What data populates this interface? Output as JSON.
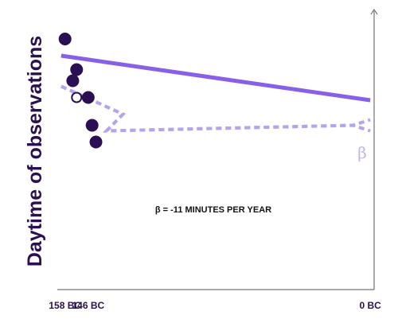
{
  "chart_data": {
    "type": "scatter",
    "title": "",
    "xlabel": "",
    "ylabel": "Daytime of observations",
    "x_tick_labels": [
      "158 BC",
      "146 BC",
      "0 BC"
    ],
    "x_tick_values": [
      -158,
      -146,
      0
    ],
    "xlim": [
      -162,
      2
    ],
    "ylim": [
      0,
      100
    ],
    "grid": false,
    "points": [
      {
        "x": -158,
        "y": 90,
        "style": "filled"
      },
      {
        "x": -154,
        "y": 75,
        "style": "filled"
      },
      {
        "x": -152,
        "y": 79,
        "style": "filled"
      },
      {
        "x": -152,
        "y": 69,
        "style": "open"
      },
      {
        "x": -146,
        "y": 69,
        "style": "filled"
      },
      {
        "x": -144,
        "y": 59,
        "style": "filled"
      },
      {
        "x": -142,
        "y": 53,
        "style": "filled"
      }
    ],
    "fit_line": {
      "x": [
        -160,
        0
      ],
      "y": [
        84,
        68
      ]
    },
    "band_upper": {
      "x": [
        -160,
        -128,
        -136.5,
        -9,
        0
      ],
      "y": [
        73,
        63,
        57,
        59,
        61
      ]
    },
    "band_lower": {
      "x": [
        -160,
        -128,
        -136.5,
        -9,
        0
      ],
      "y": [
        73,
        63,
        57,
        59,
        57
      ]
    },
    "annotation": "β = -11 MINUTES PER YEAR",
    "band_label": "β",
    "colors": {
      "points": "#2a1052",
      "fit_line": "#8860e8",
      "band": "#b4a4f0",
      "band_label": "#c3b3ee",
      "axis": "#555555",
      "ylabel": "#2a1052"
    }
  }
}
